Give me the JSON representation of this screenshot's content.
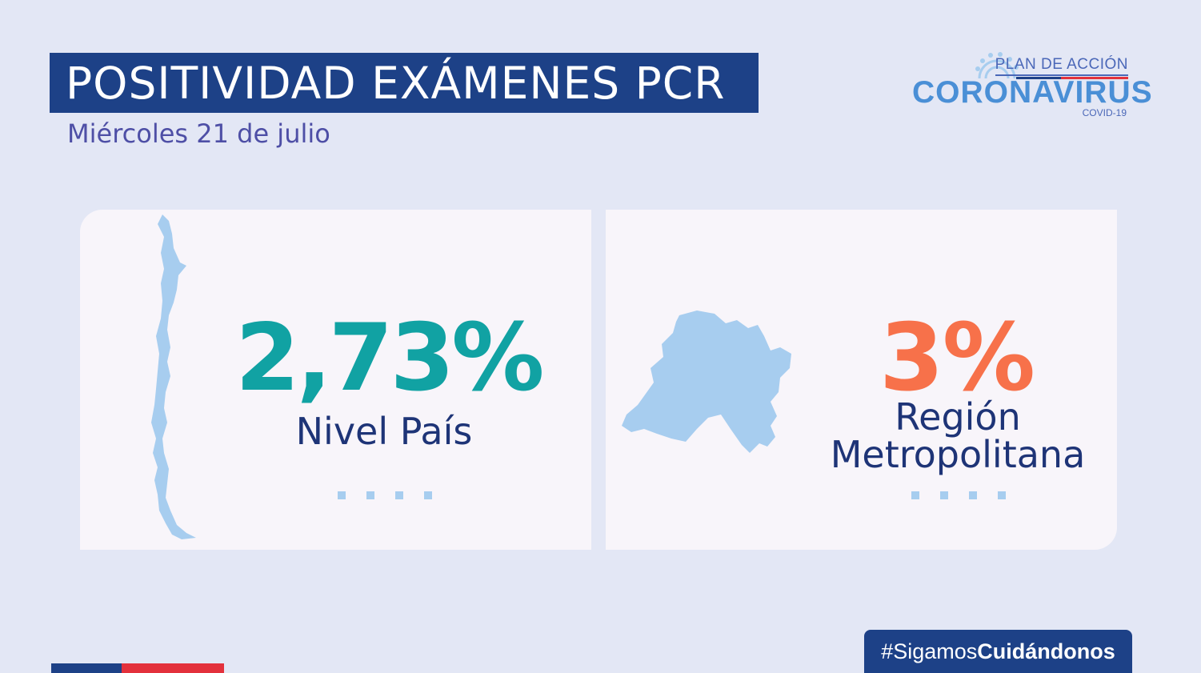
{
  "header": {
    "title": "POSITIVIDAD EXÁMENES PCR",
    "date": "Miércoles 21 de julio"
  },
  "logo": {
    "plan": "PLAN DE ACCIÓN",
    "name": "CORONAVIRUS",
    "sub": "COVID-19"
  },
  "cards": [
    {
      "value": "2,73%",
      "label": "Nivel País",
      "color": "#11a2a3",
      "map_icon": "chile-map-icon"
    },
    {
      "value": "3%",
      "label_line1": "Región",
      "label_line2": "Metropolitana",
      "color": "#f7714a",
      "map_icon": "region-metropolitana-map-icon"
    }
  ],
  "footer": {
    "hashtag_prefix": "#Sigamos",
    "hashtag_bold": "Cuidándonos"
  },
  "colors": {
    "navy": "#1d4187",
    "background": "#e3e7f5",
    "card": "#f8f5fa",
    "map": "#a7cdef",
    "red": "#e3313c"
  }
}
